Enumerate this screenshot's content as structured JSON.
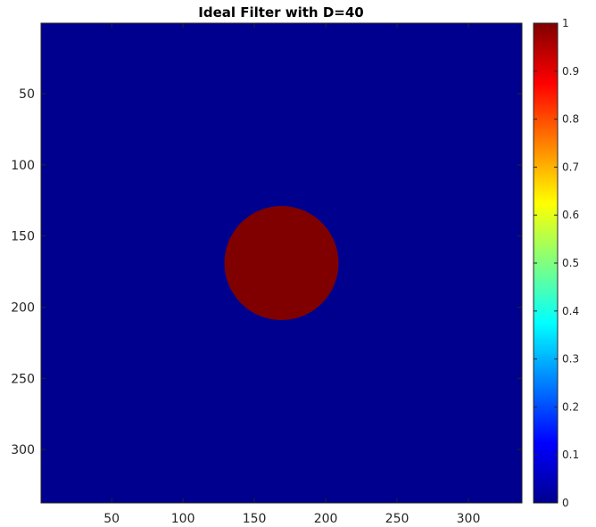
{
  "chart_data": {
    "type": "heatmap",
    "title": "Ideal Filter with D=40",
    "xlabel": "",
    "ylabel": "",
    "xlim": [
      0.5,
      337.5
    ],
    "ylim": [
      0.5,
      337.5
    ],
    "y_reversed": true,
    "x_ticks": [
      "50",
      "100",
      "150",
      "200",
      "250",
      "300"
    ],
    "y_ticks": [
      "50",
      "100",
      "150",
      "200",
      "250",
      "300"
    ],
    "image": {
      "width": 337,
      "height": 337,
      "background_value": 0,
      "shape": "disk",
      "center": [
        169,
        169
      ],
      "radius": 40,
      "inside_value": 1
    },
    "colormap": "jet",
    "colorbar": {
      "range": [
        0,
        1
      ],
      "ticks": [
        "0",
        "0.1",
        "0.2",
        "0.3",
        "0.4",
        "0.5",
        "0.6",
        "0.7",
        "0.8",
        "0.9",
        "1"
      ]
    },
    "colors": {
      "low": "#00008f",
      "high": "#800000"
    },
    "grid": false,
    "legend": "none"
  }
}
